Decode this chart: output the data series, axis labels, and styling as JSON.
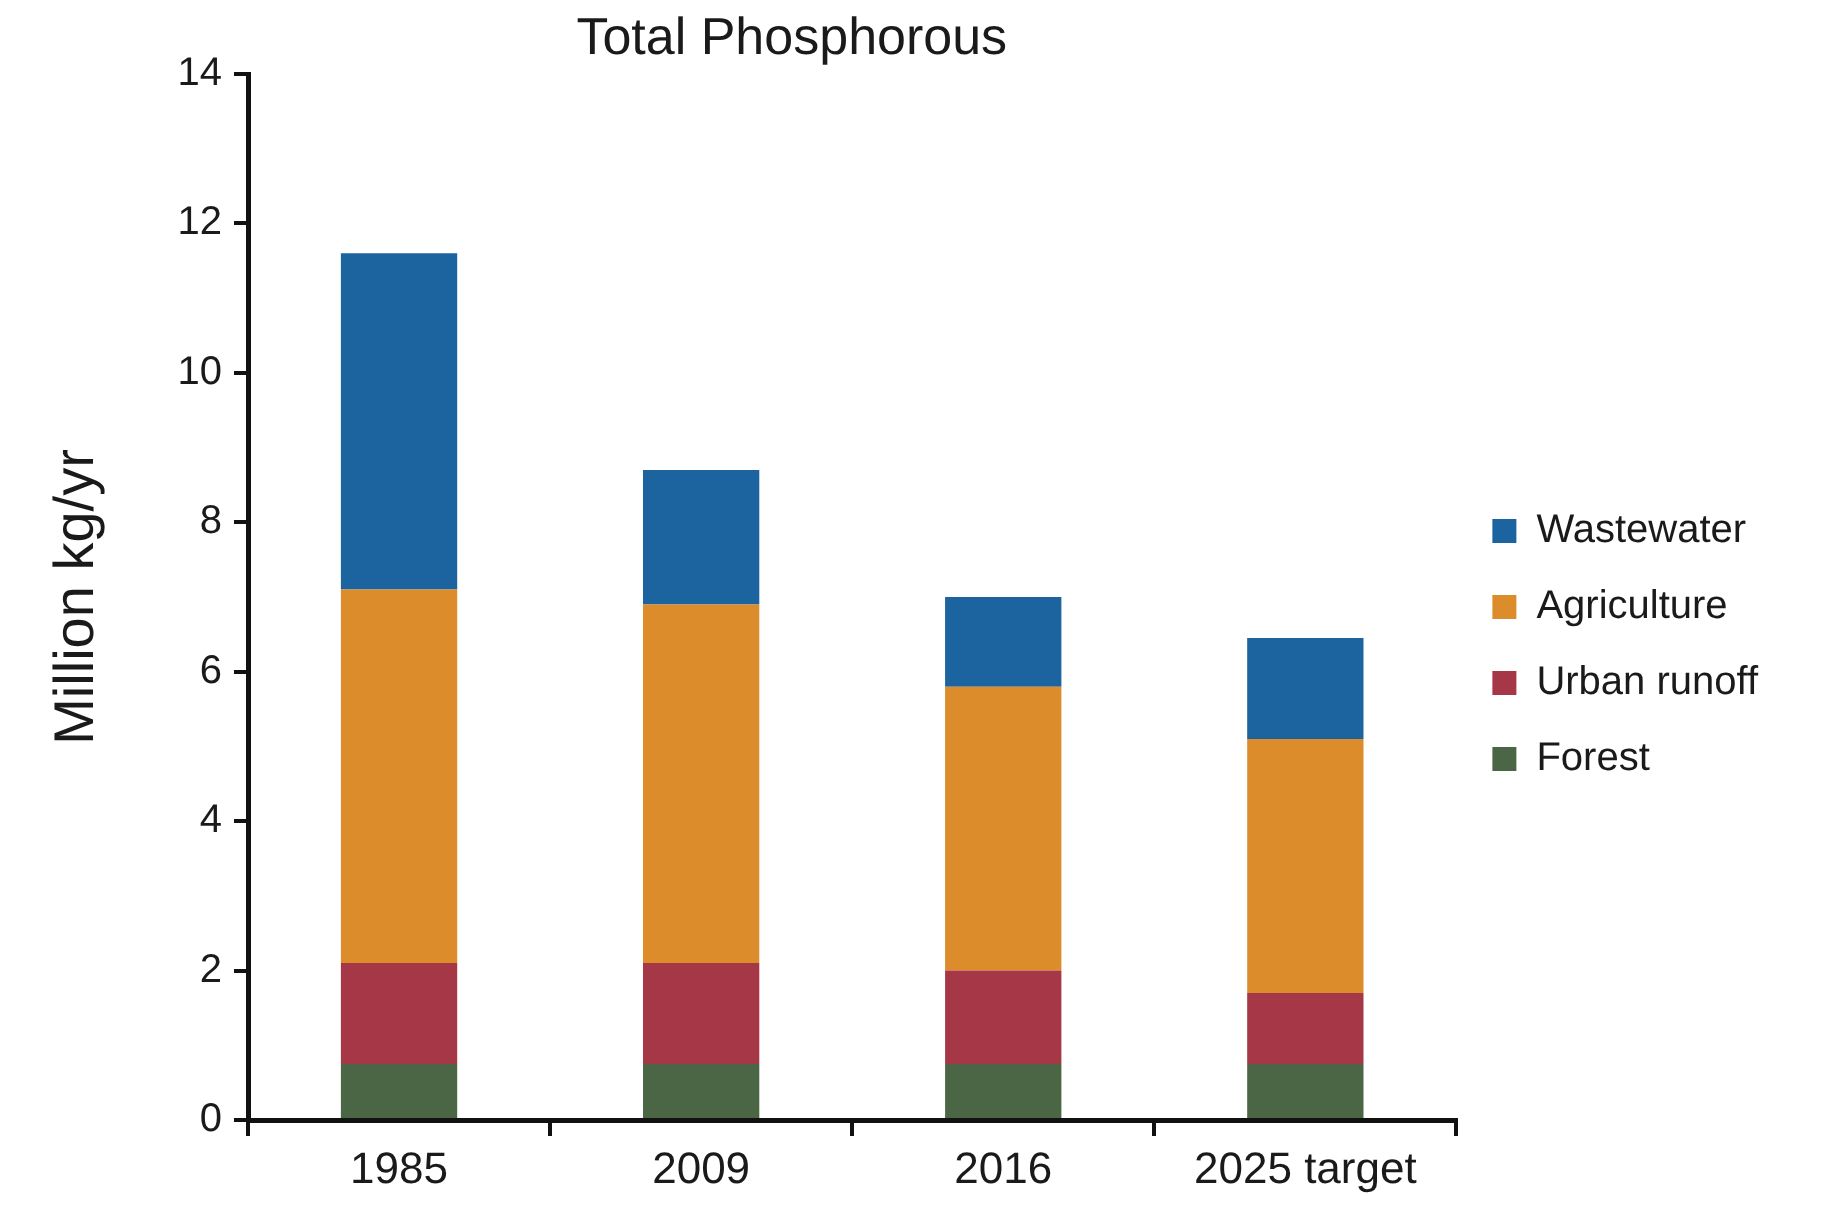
{
  "chart_data": {
    "type": "bar",
    "title": "Total Phosphorous",
    "ylabel": "Million kg/yr",
    "categories": [
      "1985",
      "2009",
      "2016",
      "2025 target"
    ],
    "stacked": true,
    "series": [
      {
        "name": "Forest",
        "color": "#4b6645",
        "values": [
          0.75,
          0.75,
          0.75,
          0.75
        ]
      },
      {
        "name": "Urban runoff",
        "color": "#a53747",
        "values": [
          1.35,
          1.35,
          1.25,
          0.95
        ]
      },
      {
        "name": "Agriculture",
        "color": "#dd8c2c",
        "values": [
          5.0,
          4.8,
          3.8,
          3.4
        ]
      },
      {
        "name": "Wastewater",
        "color": "#1c64a0",
        "values": [
          4.5,
          1.8,
          1.2,
          1.35
        ]
      }
    ],
    "ylim": [
      0,
      14
    ],
    "yticks": [
      0,
      2,
      4,
      6,
      8,
      10,
      12,
      14
    ],
    "grid": false,
    "legend": "right"
  }
}
